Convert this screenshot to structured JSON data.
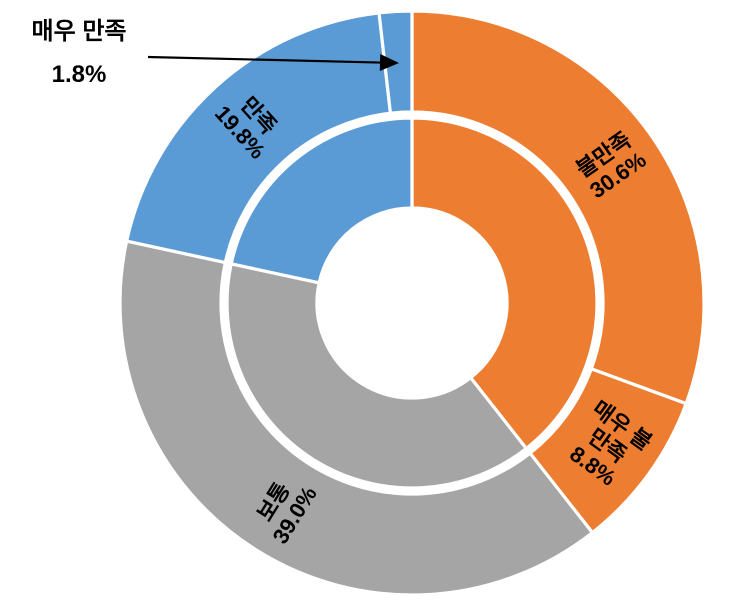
{
  "canvas": {
    "background": "#FFFFFF"
  },
  "chart_data": {
    "type": "donut",
    "title": "",
    "value_unit": "%",
    "direction": "clockwise",
    "start_angle_deg": 0,
    "categories": [
      "불만족",
      "매우 불만족",
      "보통",
      "만족",
      "매우 만족"
    ],
    "values": [
      30.6,
      8.8,
      39.0,
      19.8,
      1.8
    ],
    "slugs": [
      "dissatisfied",
      "very-dissatisfied",
      "neutral",
      "satisfied",
      "very-satisfied"
    ],
    "colors": [
      "#ED7D31",
      "#ED7D31",
      "#A5A5A5",
      "#5B9BD5",
      "#5B9BD5"
    ],
    "segment_border_color": "#FFFFFF",
    "label_color": "#000000",
    "rings": {
      "outer": "five individual categories with data labels",
      "inner": "same data grouped into three bands (dissatisfied total, neutral, satisfied total), no labels"
    },
    "inner_groups": [
      {
        "members": [
          0,
          1
        ],
        "total": 39.4
      },
      {
        "members": [
          2
        ],
        "total": 39.0
      },
      {
        "members": [
          3,
          4
        ],
        "total": 21.6
      }
    ],
    "segment_labels": [
      {
        "lines": [
          "불만족",
          "30.6%"
        ],
        "placement": "inside"
      },
      {
        "lines": [
          "매우 불",
          "만족",
          "8.8%"
        ],
        "placement": "inside"
      },
      {
        "lines": [
          "보통",
          "39.0%"
        ],
        "placement": "inside"
      },
      {
        "lines": [
          "만족",
          "19.8%"
        ],
        "placement": "inside"
      },
      {
        "lines": [
          "매우 만족",
          "1.8%"
        ],
        "placement": "callout-top-left"
      }
    ],
    "annotation": {
      "lines": [
        "매우 만족",
        "1.8%"
      ],
      "arrow": "black arrow from label to thin blue 1.8% sliver at twelve o'clock"
    }
  }
}
